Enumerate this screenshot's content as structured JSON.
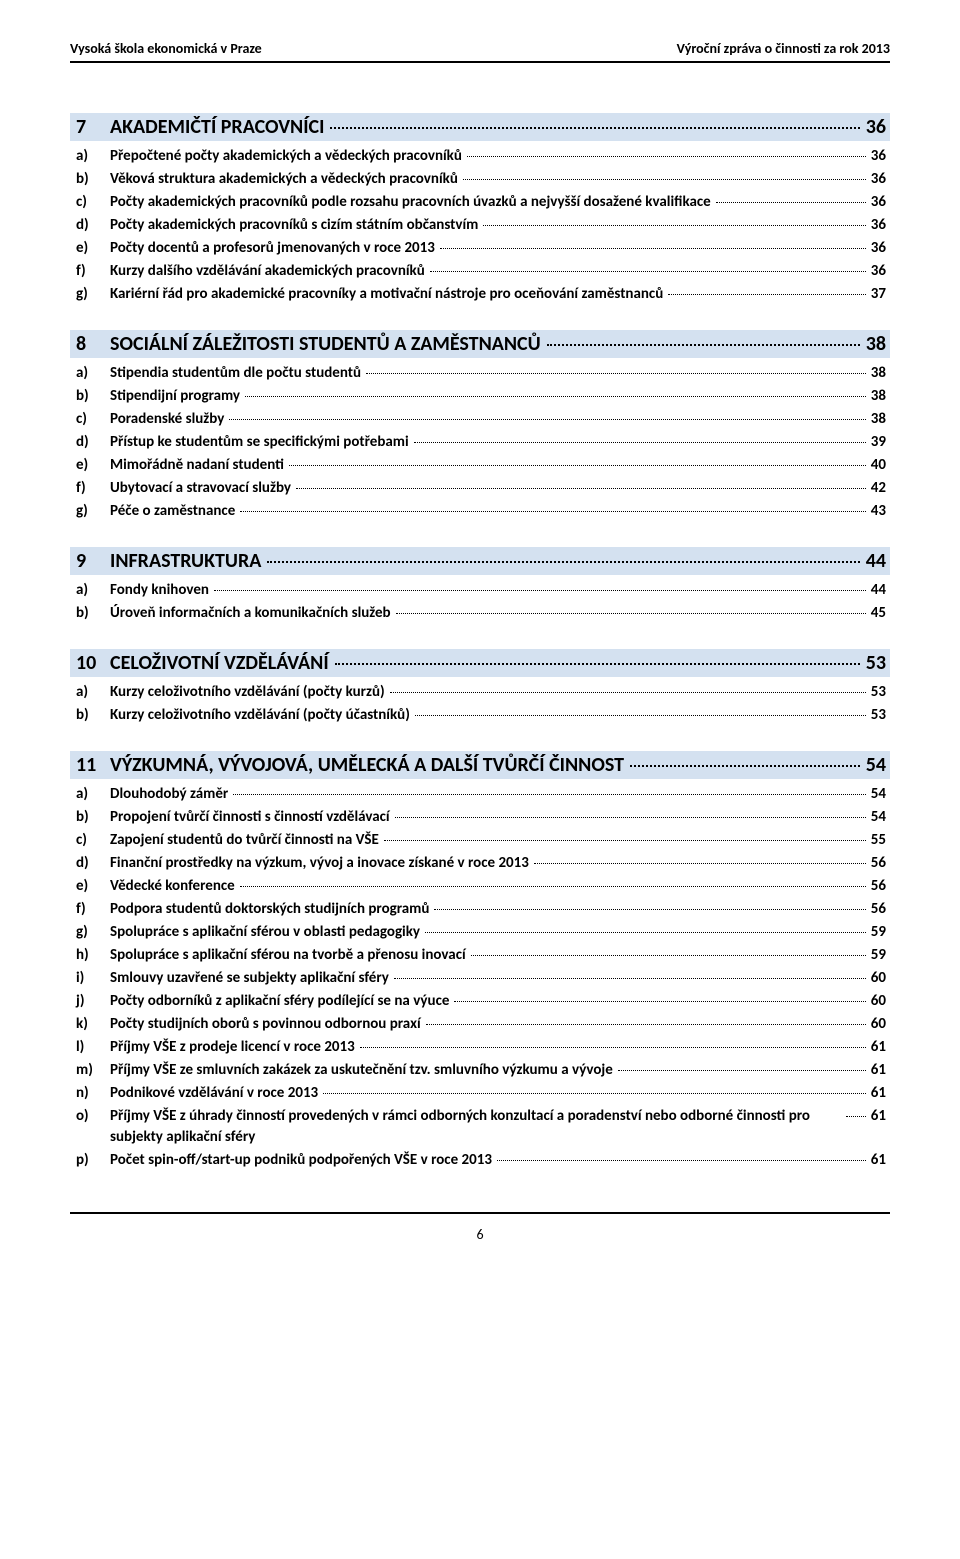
{
  "running_head": {
    "left": "Vysoká škola ekonomická v Praze",
    "right": "Výroční zpráva o činnosti za rok 2013"
  },
  "colors": {
    "section_bg": "#d4e1f0",
    "text": "#000000",
    "page_bg": "#ffffff"
  },
  "typography": {
    "heading_fontsize_pt": 15,
    "item_fontsize_pt": 11,
    "font_family": "Calibri"
  },
  "sections": [
    {
      "num": "7",
      "title": "AKADEMIČTÍ PRACOVNÍCI",
      "page": "36",
      "items": [
        {
          "letter": "a)",
          "title": "Přepočtené počty akademických a vědeckých pracovníků",
          "page": "36"
        },
        {
          "letter": "b)",
          "title": "Věková struktura akademických a vědeckých pracovníků",
          "page": "36"
        },
        {
          "letter": "c)",
          "title": "Počty akademických pracovníků podle rozsahu pracovních úvazků a nejvyšší dosažené kvalifikace",
          "page": "36"
        },
        {
          "letter": "d)",
          "title": "Počty akademických pracovníků s cizím státním občanstvím",
          "page": "36"
        },
        {
          "letter": "e)",
          "title": "Počty docentů a profesorů jmenovaných v roce 2013",
          "page": "36"
        },
        {
          "letter": "f)",
          "title": "Kurzy dalšího vzdělávání akademických pracovníků",
          "page": "36"
        },
        {
          "letter": "g)",
          "title": "Kariérní řád pro akademické pracovníky a motivační nástroje pro oceňování zaměstnanců",
          "page": "37"
        }
      ]
    },
    {
      "num": "8",
      "title": "SOCIÁLNÍ ZÁLEŽITOSTI STUDENTŮ A ZAMĚSTNANCŮ",
      "page": "38",
      "items": [
        {
          "letter": "a)",
          "title": "Stipendia studentům dle počtu studentů",
          "page": "38"
        },
        {
          "letter": "b)",
          "title": "Stipendijní programy",
          "page": "38"
        },
        {
          "letter": "c)",
          "title": "Poradenské služby",
          "page": "38"
        },
        {
          "letter": "d)",
          "title": "Přístup ke studentům se specifickými potřebami",
          "page": "39"
        },
        {
          "letter": "e)",
          "title": "Mimořádně nadaní studenti",
          "page": "40"
        },
        {
          "letter": "f)",
          "title": "Ubytovací a stravovací služby",
          "page": "42"
        },
        {
          "letter": "g)",
          "title": "Péče o zaměstnance",
          "page": "43"
        }
      ]
    },
    {
      "num": "9",
      "title": "INFRASTRUKTURA",
      "page": "44",
      "items": [
        {
          "letter": "a)",
          "title": "Fondy knihoven",
          "page": "44"
        },
        {
          "letter": "b)",
          "title": "Úroveň informačních a komunikačních služeb",
          "page": "45"
        }
      ]
    },
    {
      "num": "10",
      "title": "CELOŽIVOTNÍ VZDĚLÁVÁNÍ",
      "page": "53",
      "items": [
        {
          "letter": "a)",
          "title": "Kurzy celoživotního vzdělávání (počty kurzů)",
          "page": "53"
        },
        {
          "letter": "b)",
          "title": "Kurzy celoživotního vzdělávání (počty účastníků)",
          "page": "53"
        }
      ]
    },
    {
      "num": "11",
      "title": "VÝZKUMNÁ, VÝVOJOVÁ, UMĚLECKÁ A DALŠÍ TVŮRČÍ ČINNOST",
      "page": "54",
      "items": [
        {
          "letter": "a)",
          "title": "Dlouhodobý záměr",
          "page": "54"
        },
        {
          "letter": "b)",
          "title": "Propojení tvůrčí činnosti s činností vzdělávací",
          "page": "54"
        },
        {
          "letter": "c)",
          "title": "Zapojení studentů do tvůrčí činnosti na VŠE",
          "page": "55"
        },
        {
          "letter": "d)",
          "title": "Finanční prostředky na výzkum, vývoj a inovace získané v roce 2013",
          "page": "56"
        },
        {
          "letter": "e)",
          "title": "Vědecké konference",
          "page": "56"
        },
        {
          "letter": "f)",
          "title": "Podpora studentů doktorských studijních programů",
          "page": "56"
        },
        {
          "letter": "g)",
          "title": "Spolupráce s aplikační sférou v oblasti pedagogiky",
          "page": "59"
        },
        {
          "letter": "h)",
          "title": "Spolupráce s aplikační sférou na tvorbě a přenosu inovací",
          "page": "59"
        },
        {
          "letter": "i)",
          "title": "Smlouvy uzavřené se subjekty aplikační sféry",
          "page": "60"
        },
        {
          "letter": "j)",
          "title": "Počty odborníků z aplikační sféry podílející se na výuce",
          "page": "60"
        },
        {
          "letter": "k)",
          "title": "Počty studijních oborů s povinnou odbornou praxí",
          "page": "60"
        },
        {
          "letter": "l)",
          "title": "Příjmy VŠE z prodeje licencí v roce 2013",
          "page": "61"
        },
        {
          "letter": "m)",
          "title": "Příjmy VŠE ze smluvních zakázek za uskutečnění tzv. smluvního výzkumu a vývoje",
          "page": "61"
        },
        {
          "letter": "n)",
          "title": "Podnikové vzdělávání v roce 2013",
          "page": "61"
        },
        {
          "letter": "o)",
          "title": "Příjmy VŠE z úhrady činností provedených v rámci odborných konzultací a poradenství nebo odborné činnosti pro subjekty aplikační sféry",
          "page": "61"
        },
        {
          "letter": "p)",
          "title": "Počet spin-off/start-up podniků podpořených VŠE v roce 2013",
          "page": "61"
        }
      ]
    }
  ],
  "footer_page_number": "6"
}
